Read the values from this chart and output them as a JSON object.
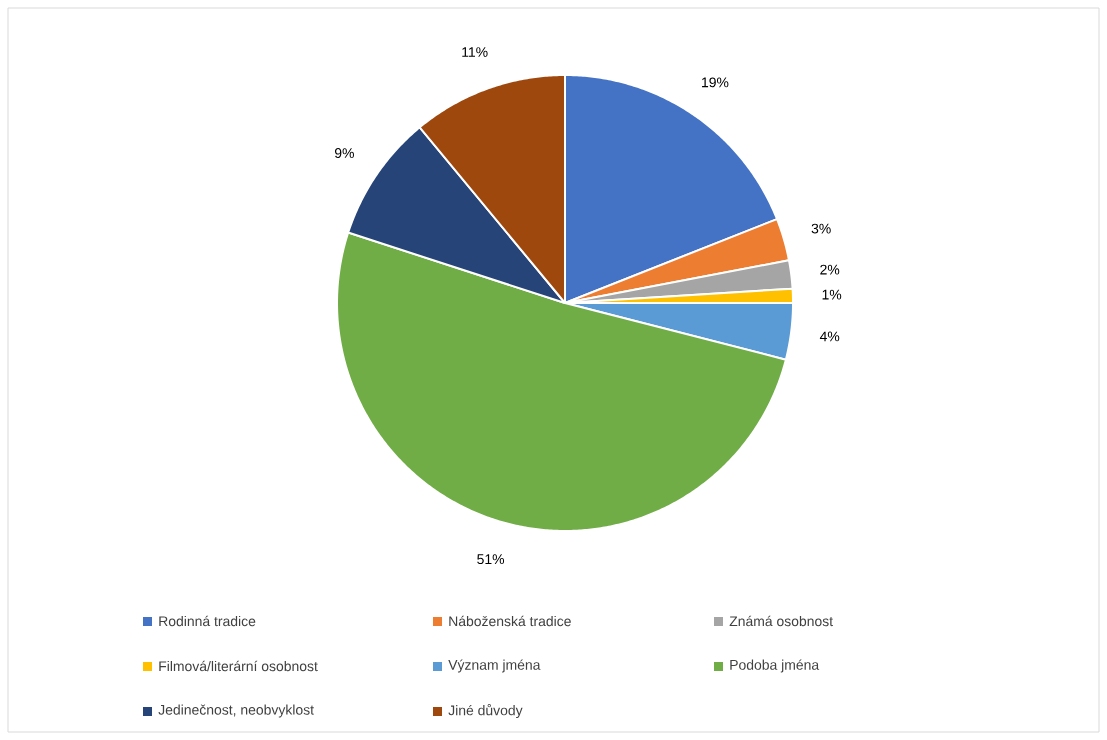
{
  "chart_data": {
    "type": "pie",
    "categories": [
      "Rodinná tradice",
      "Náboženská tradice",
      "Známá osobnost",
      "Filmová/literární osobnost",
      "Význam jména",
      "Podoba jména",
      "Jedinečnost, neobvyklost",
      "Jiné důvody"
    ],
    "values": [
      19,
      3,
      2,
      1,
      4,
      51,
      9,
      11
    ],
    "value_labels": [
      "19%",
      "3%",
      "2%",
      "1%",
      "4%",
      "51%",
      "9%",
      "11%"
    ],
    "colors": [
      "#4472c4",
      "#ed7d31",
      "#a5a5a5",
      "#ffc000",
      "#5b9bd5",
      "#70ad47",
      "#264478",
      "#9e480e"
    ],
    "legend": "bottom"
  }
}
